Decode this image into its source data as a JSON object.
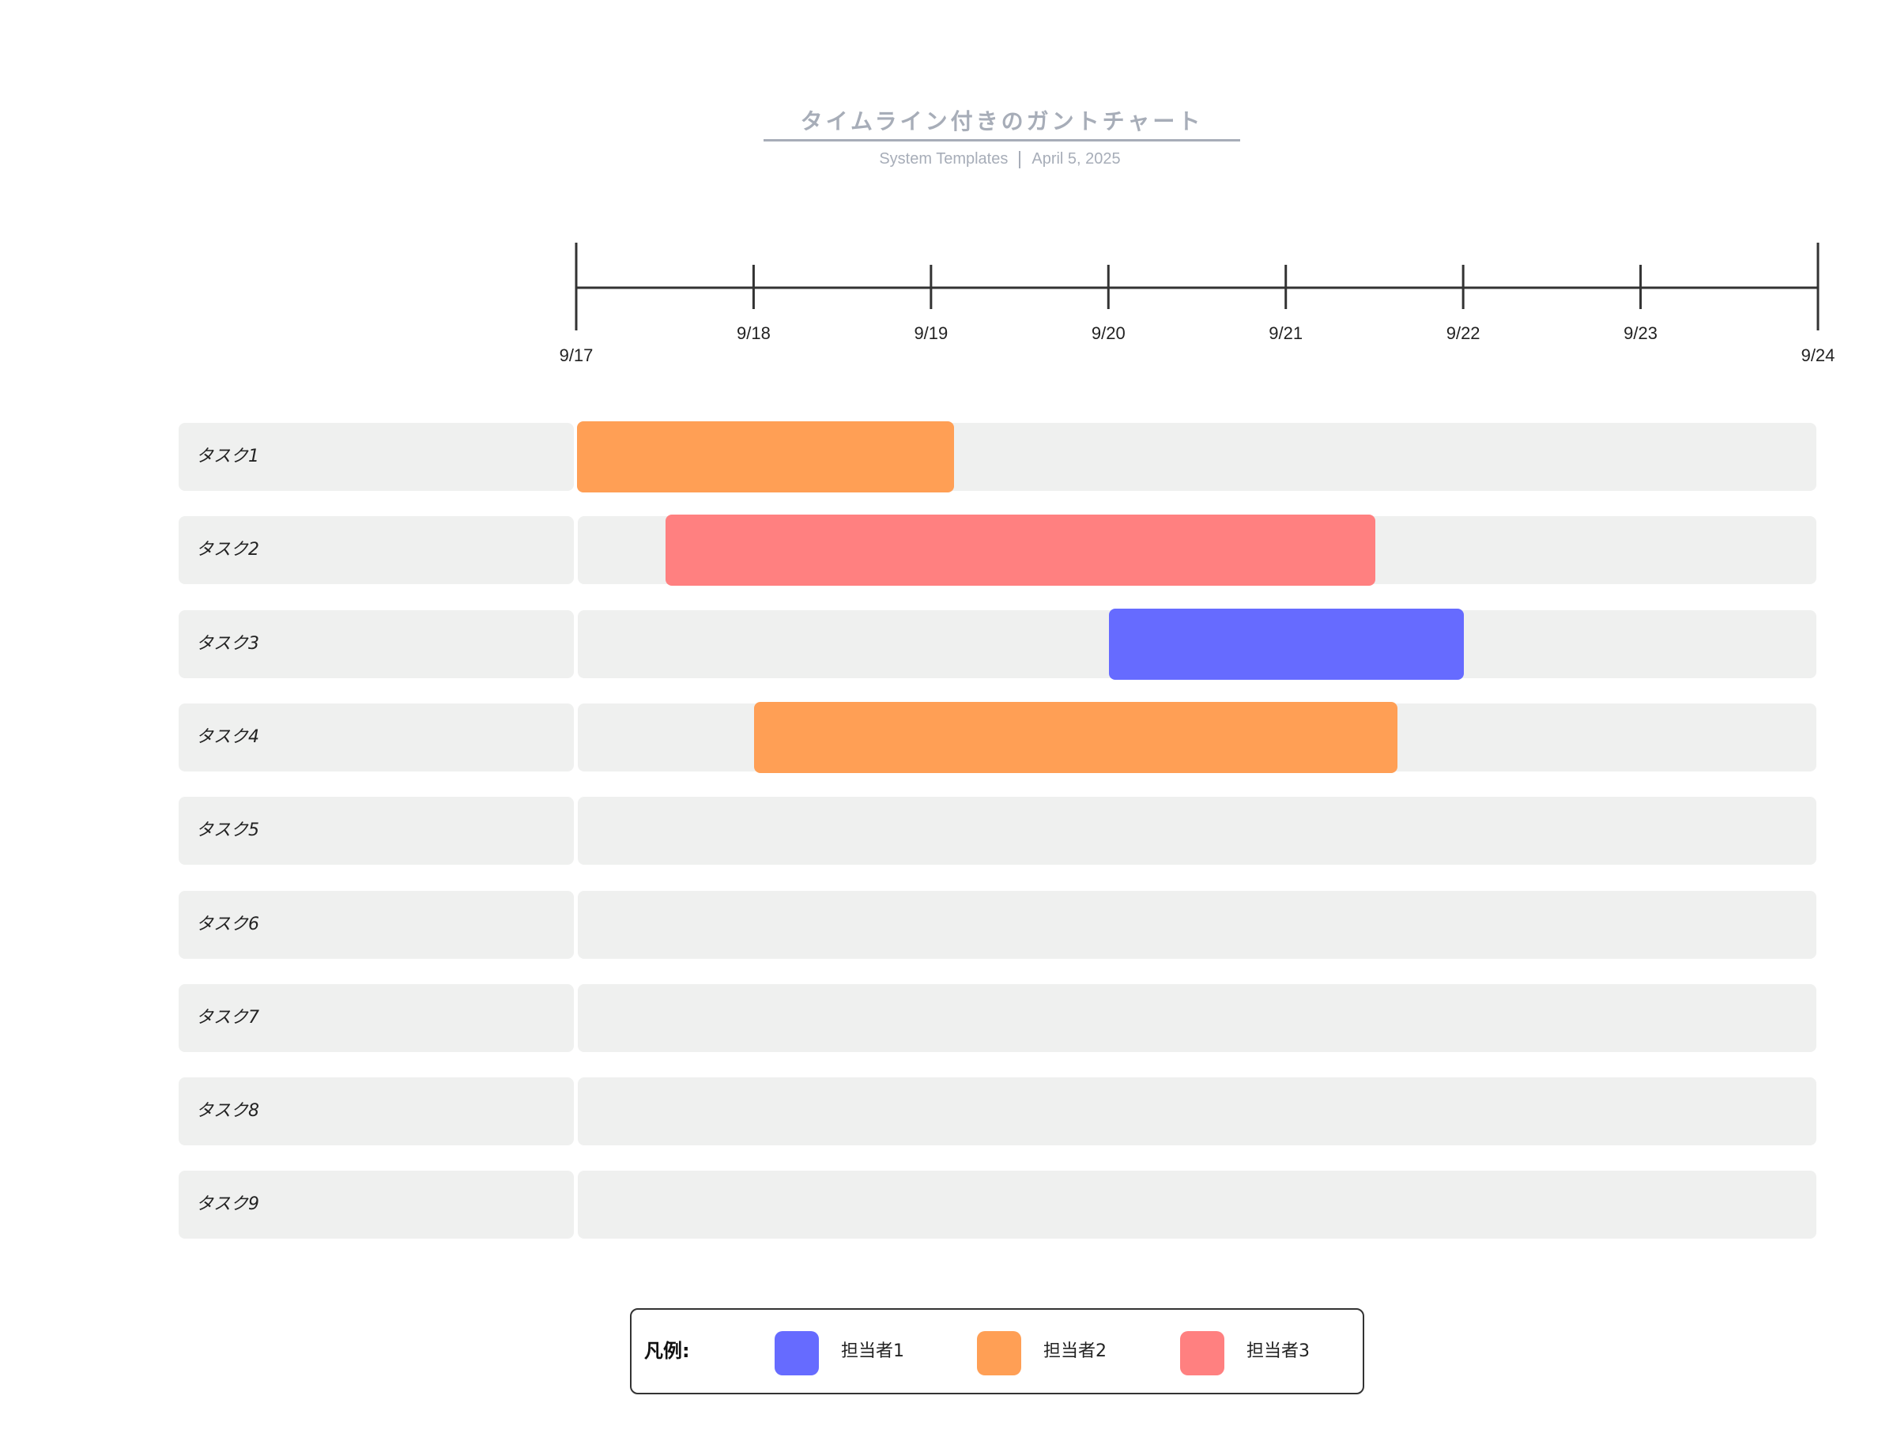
{
  "header": {
    "title": "タイムライン付きのガントチャート",
    "subtitle_source": "System Templates",
    "subtitle_date": "April 5, 2025"
  },
  "chart_data": {
    "type": "gantt",
    "title": "タイムライン付きのガントチャート",
    "x_axis": {
      "ticks": [
        "9/17",
        "9/18",
        "9/19",
        "9/20",
        "9/21",
        "9/22",
        "9/23",
        "9/24"
      ],
      "range": [
        "9/17",
        "9/24"
      ]
    },
    "tasks": [
      {
        "label": "タスク1",
        "start": "9/17 00:00",
        "end": "9/19 03:00",
        "assignee": "担当者2"
      },
      {
        "label": "タスク2",
        "start": "9/17 12:00",
        "end": "9/21 12:00",
        "assignee": "担当者3"
      },
      {
        "label": "タスク3",
        "start": "9/20 00:00",
        "end": "9/22 00:00",
        "assignee": "担当者1"
      },
      {
        "label": "タスク4",
        "start": "9/18 00:00",
        "end": "9/21 15:00",
        "assignee": "担当者2"
      },
      {
        "label": "タスク5"
      },
      {
        "label": "タスク6"
      },
      {
        "label": "タスク7"
      },
      {
        "label": "タスク8"
      },
      {
        "label": "タスク9"
      }
    ],
    "legend": {
      "title": "凡例:",
      "placement": "bottom",
      "items": [
        {
          "label": "担当者1",
          "color": "#666bff"
        },
        {
          "label": "担当者2",
          "color": "#ff9f55"
        },
        {
          "label": "担当者3",
          "color": "#ff8080"
        }
      ]
    }
  }
}
